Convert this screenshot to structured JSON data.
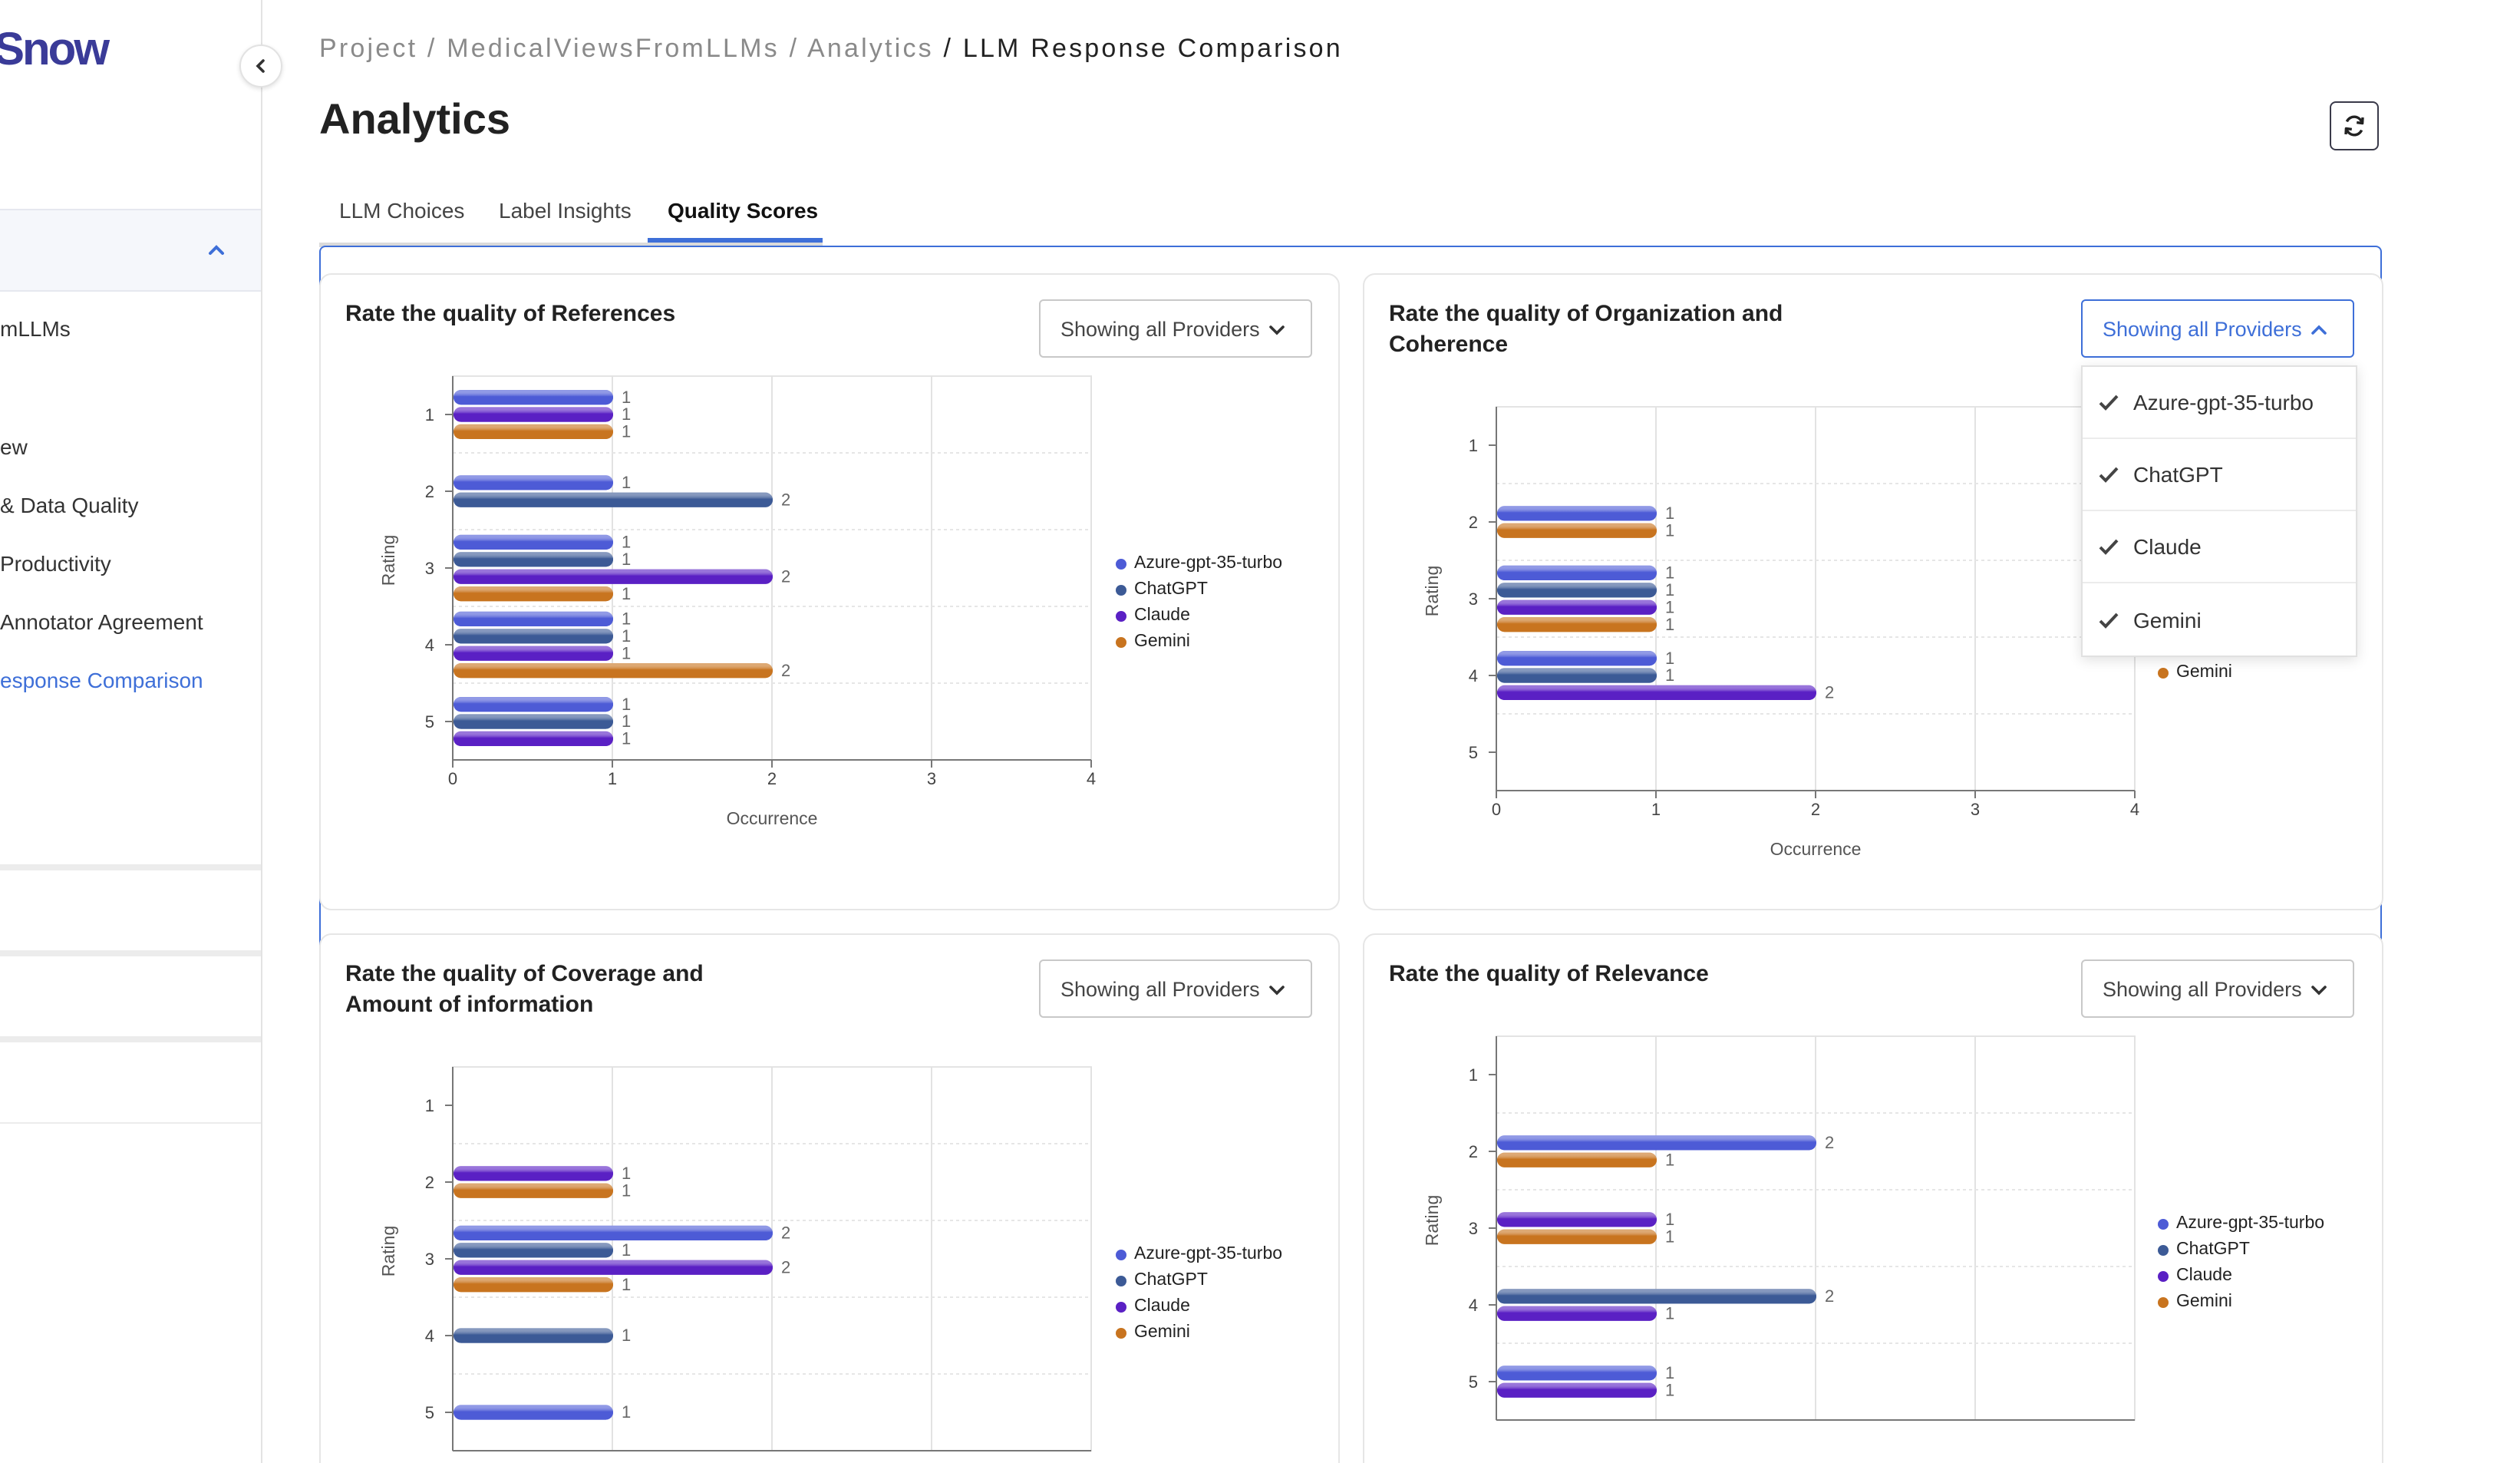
{
  "sidebar": {
    "logo": "Snow",
    "items": [
      {
        "label": "mLLMs",
        "active": false
      },
      {
        "label": "ew",
        "active": false
      },
      {
        "label": "& Data Quality",
        "active": false
      },
      {
        "label": "Productivity",
        "active": false
      },
      {
        "label": "Annotator Agreement",
        "active": false
      },
      {
        "label": "esponse Comparison",
        "active": true
      }
    ]
  },
  "breadcrumb": {
    "items": [
      "Project",
      "MedicalViewsFromLLMs",
      "Analytics"
    ],
    "current": "LLM Response Comparison"
  },
  "page": {
    "title": "Analytics"
  },
  "tabs": [
    {
      "label": "LLM Choices",
      "active": false
    },
    {
      "label": "Label Insights",
      "active": false
    },
    {
      "label": "Quality Scores",
      "active": true
    }
  ],
  "colors": {
    "accent": "#3e6fd8",
    "Azure-gpt-35-turbo": "#4d5bd6",
    "ChatGPT": "#3c5a96",
    "Claude": "#5a20c4",
    "Gemini": "#c8741f"
  },
  "dropdown": {
    "options": [
      "Azure-gpt-35-turbo",
      "ChatGPT",
      "Claude",
      "Gemini"
    ]
  },
  "chart_data": [
    {
      "type": "bar",
      "title": "Rate the quality of References",
      "filter_label": "Showing all Providers",
      "xlabel": "Occurrence",
      "ylabel": "Rating",
      "xlim": [
        0,
        4
      ],
      "xticks": [
        "0",
        "1",
        "2",
        "3",
        "4"
      ],
      "categories": [
        "1",
        "2",
        "3",
        "4",
        "5"
      ],
      "legend": [
        "Azure-gpt-35-turbo",
        "ChatGPT",
        "Claude",
        "Gemini"
      ],
      "series": [
        {
          "name": "Azure-gpt-35-turbo",
          "values": [
            1,
            1,
            1,
            1,
            1
          ]
        },
        {
          "name": "ChatGPT",
          "values": [
            0,
            2,
            1,
            1,
            1
          ]
        },
        {
          "name": "Claude",
          "values": [
            1,
            0,
            2,
            1,
            1
          ]
        },
        {
          "name": "Gemini",
          "values": [
            1,
            0,
            1,
            2,
            0
          ]
        }
      ]
    },
    {
      "type": "bar",
      "title": "Rate the quality of Organization and Coherence",
      "filter_label": "Showing all Providers",
      "xlabel": "Occurrence",
      "ylabel": "Rating",
      "xlim": [
        0,
        4
      ],
      "xticks": [
        "0",
        "1",
        "2",
        "3",
        "4"
      ],
      "categories": [
        "1",
        "2",
        "3",
        "4",
        "5"
      ],
      "legend": [
        "Gemini"
      ],
      "series": [
        {
          "name": "Azure-gpt-35-turbo",
          "values": [
            0,
            1,
            1,
            1,
            0
          ]
        },
        {
          "name": "ChatGPT",
          "values": [
            0,
            0,
            1,
            1,
            0
          ]
        },
        {
          "name": "Claude",
          "values": [
            0,
            0,
            1,
            2,
            0
          ]
        },
        {
          "name": "Gemini",
          "values": [
            0,
            1,
            1,
            0,
            0
          ]
        }
      ]
    },
    {
      "type": "bar",
      "title": "Rate the quality of Coverage and Amount of information",
      "filter_label": "Showing all Providers",
      "xlabel": "",
      "ylabel": "Rating",
      "xlim": [
        0,
        4
      ],
      "xticks": [],
      "categories": [
        "1",
        "2",
        "3",
        "4",
        "5"
      ],
      "legend": [
        "Azure-gpt-35-turbo",
        "ChatGPT",
        "Claude",
        "Gemini"
      ],
      "series": [
        {
          "name": "Azure-gpt-35-turbo",
          "values": [
            0,
            0,
            2,
            0,
            1
          ]
        },
        {
          "name": "ChatGPT",
          "values": [
            0,
            0,
            1,
            1,
            0
          ]
        },
        {
          "name": "Claude",
          "values": [
            0,
            1,
            2,
            0,
            0
          ]
        },
        {
          "name": "Gemini",
          "values": [
            0,
            1,
            1,
            0,
            0
          ]
        }
      ]
    },
    {
      "type": "bar",
      "title": "Rate the quality of Relevance",
      "filter_label": "Showing all Providers",
      "xlabel": "",
      "ylabel": "Rating",
      "xlim": [
        0,
        4
      ],
      "xticks": [],
      "categories": [
        "1",
        "2",
        "3",
        "4",
        "5"
      ],
      "legend": [
        "Azure-gpt-35-turbo",
        "ChatGPT",
        "Claude",
        "Gemini"
      ],
      "series": [
        {
          "name": "Azure-gpt-35-turbo",
          "values": [
            0,
            2,
            0,
            0,
            1
          ]
        },
        {
          "name": "ChatGPT",
          "values": [
            0,
            0,
            0,
            2,
            0
          ]
        },
        {
          "name": "Claude",
          "values": [
            0,
            0,
            1,
            1,
            1
          ]
        },
        {
          "name": "Gemini",
          "values": [
            0,
            1,
            1,
            0,
            0
          ]
        }
      ]
    }
  ]
}
